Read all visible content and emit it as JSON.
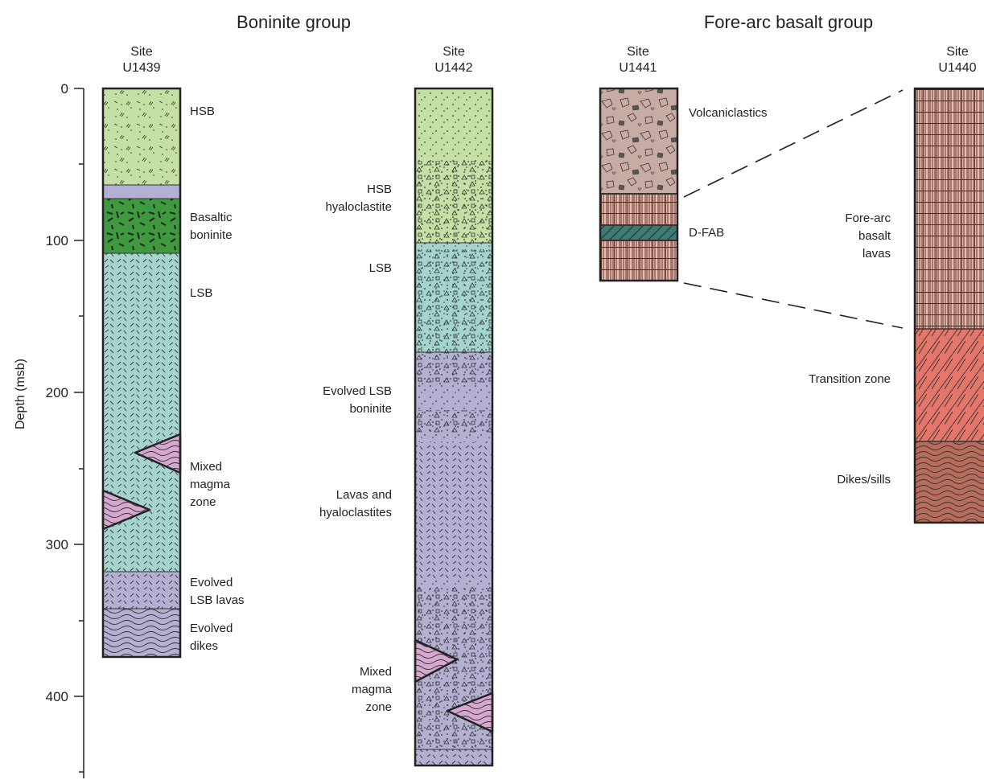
{
  "groups": {
    "boninite": "Boninite group",
    "forearc": "Fore-arc basalt group"
  },
  "sites": {
    "u1439": [
      "Site",
      "U1439"
    ],
    "u1442": [
      "Site",
      "U1442"
    ],
    "u1441": [
      "Site",
      "U1441"
    ],
    "u1440": [
      "Site",
      "U1440"
    ]
  },
  "axis": {
    "label": "Depth (msb)",
    "ticks": [
      "0",
      "100",
      "200",
      "300",
      "400"
    ]
  },
  "u1439_units": {
    "hsb": "HSB",
    "basaltic_boninite": [
      "Basaltic",
      "boninite"
    ],
    "lsb": "LSB",
    "mixed": [
      "Mixed",
      "magma",
      "zone"
    ],
    "evolved_lsb_lavas": [
      "Evolved",
      "LSB lavas"
    ],
    "evolved_dikes": [
      "Evolved",
      "dikes"
    ]
  },
  "u1442_units": {
    "hsb_hyaloclastite": [
      "HSB",
      "hyaloclastite"
    ],
    "lsb": "LSB",
    "evolved_lsb_boninite": [
      "Evolved LSB",
      "boninite"
    ],
    "lavas_hyaloclastites": [
      "Lavas and",
      "hyaloclastites"
    ],
    "mixed": [
      "Mixed",
      "magma",
      "zone"
    ]
  },
  "u1441_units": {
    "volcaniclastics": "Volcaniclastics",
    "dfab": "D-FAB"
  },
  "u1440_units": {
    "fab_lavas": [
      "Fore-arc",
      "basalt",
      "lavas"
    ],
    "transition": "Transition zone",
    "dikes": "Dikes/sills"
  },
  "colors": {
    "hsb_green": "#c4e0a4",
    "basaltic_green": "#3f9a3f",
    "lsb_teal": "#a3d4cd",
    "evolved_purple": "#b4b0d4",
    "mixed_pink": "#d6a8cf",
    "volcaniclastic_brown": "#c8aca4",
    "fab_salmon": "#f4b8a8",
    "dfab_teal": "#3f7a74",
    "transition_red": "#e4766a",
    "dikes_brown": "#b86c5c"
  }
}
